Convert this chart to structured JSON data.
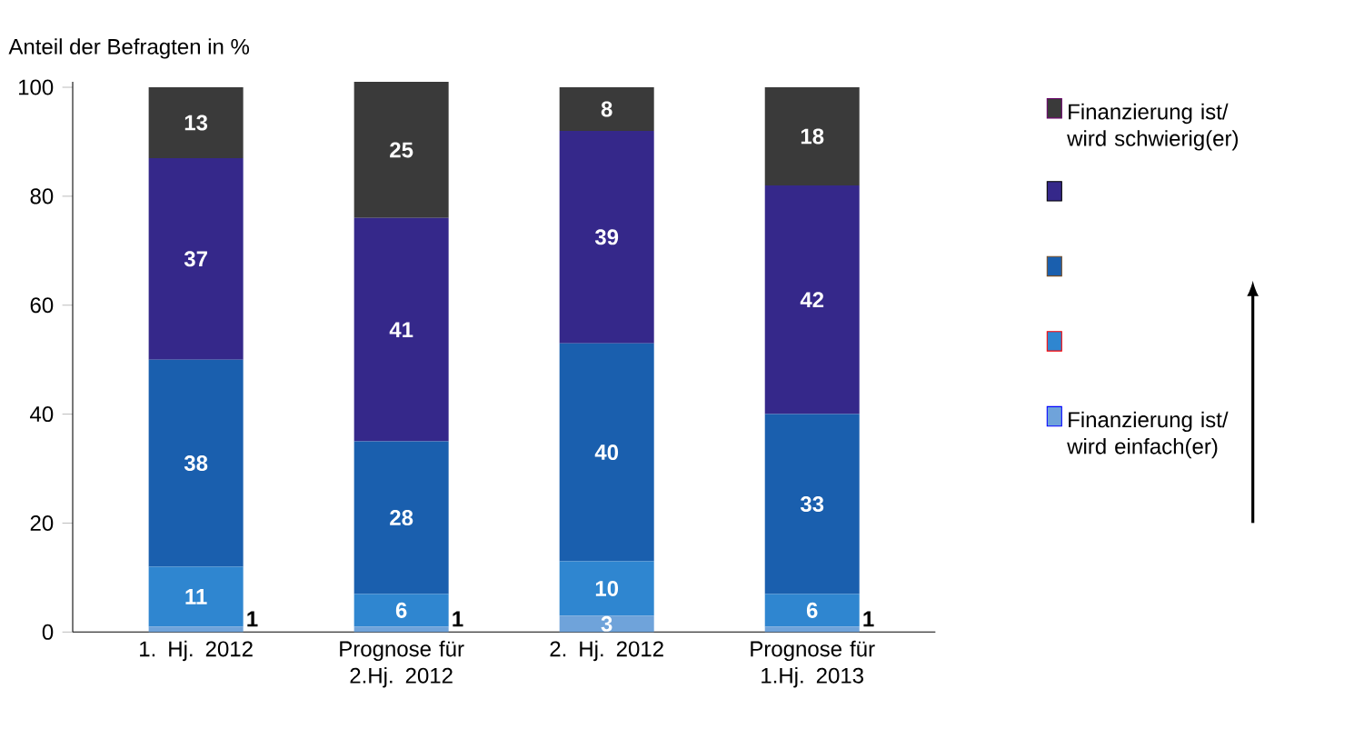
{
  "chart_data": {
    "type": "bar",
    "stacked": true,
    "ylabel": "Anteil der Befragten in %",
    "categories": [
      "1. Hj. 2012",
      "Prognose für 2.Hj. 2012",
      "2. Hj. 2012",
      "Prognose für 1.Hj. 2013"
    ],
    "series": [
      {
        "name": "Finanzierung ist/ wird einfach(er)",
        "color": "#6fa3da",
        "values": [
          1,
          1,
          3,
          1
        ]
      },
      {
        "color": "#2f86d0",
        "values": [
          11,
          6,
          10,
          6
        ]
      },
      {
        "color": "#1a5fae",
        "values": [
          38,
          28,
          40,
          33
        ]
      },
      {
        "color": "#35288a",
        "values": [
          37,
          41,
          39,
          42
        ]
      },
      {
        "name": "Finanzierung ist/ wird schwierig(er)",
        "color": "#3a3a3a",
        "values": [
          13,
          25,
          8,
          18
        ]
      }
    ],
    "ylim": [
      0,
      101
    ],
    "yticks": [
      0,
      20,
      40,
      60,
      80,
      100
    ],
    "data_labels": true,
    "legend": "right",
    "grid": false
  }
}
